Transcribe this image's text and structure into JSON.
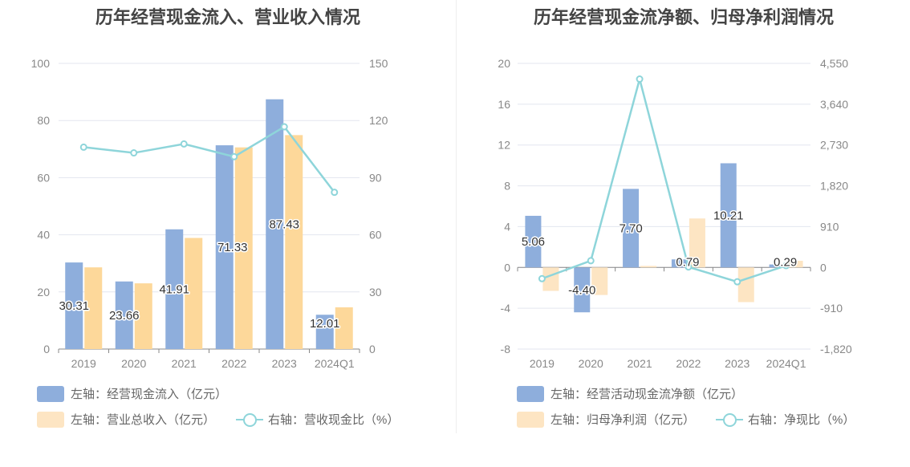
{
  "chart_data": [
    {
      "type": "bar",
      "title": "历年经营现金流入、营业收入情况",
      "categories": [
        "2019",
        "2020",
        "2021",
        "2022",
        "2023",
        "2024Q1"
      ],
      "left_axis": {
        "ticks": [
          "0",
          "20",
          "40",
          "60",
          "80",
          "100"
        ],
        "ylim": [
          0,
          100
        ]
      },
      "right_axis": {
        "ticks": [
          "0",
          "30",
          "60",
          "90",
          "120",
          "150"
        ],
        "ylim": [
          0,
          150
        ]
      },
      "series": [
        {
          "name": "左轴：经营现金流入（亿元）",
          "type": "bar",
          "axis": "left",
          "color": "#8eaedc",
          "values": [
            30.31,
            23.66,
            41.91,
            71.33,
            87.43,
            12.01
          ],
          "labels": [
            "30.31",
            "23.66",
            "41.91",
            "71.33",
            "87.43",
            "12.01"
          ]
        },
        {
          "name": "左轴：营业总收入（亿元）",
          "type": "bar",
          "axis": "left",
          "color": "#fdd89a",
          "values": [
            28.6,
            23.0,
            38.9,
            70.6,
            74.9,
            14.6
          ]
        },
        {
          "name": "右轴：营收现金比（%）",
          "type": "line",
          "axis": "right",
          "color": "#8ed5da",
          "values": [
            106.0,
            103.0,
            107.7,
            101.0,
            116.7,
            82.3
          ]
        }
      ],
      "grid": true
    },
    {
      "type": "bar",
      "title": "历年经营现金流净额、归母净利润情况",
      "categories": [
        "2019",
        "2020",
        "2021",
        "2022",
        "2023",
        "2024Q1"
      ],
      "left_axis": {
        "ticks": [
          "-8",
          "-4",
          "0",
          "4",
          "8",
          "12",
          "16",
          "20"
        ],
        "ylim": [
          -8,
          20
        ]
      },
      "right_axis": {
        "ticks": [
          "-1,820",
          "-910",
          "0",
          "910",
          "1,820",
          "2,730",
          "3,640",
          "4,550"
        ],
        "ylim": [
          -1820,
          4550
        ]
      },
      "series": [
        {
          "name": "左轴：经营活动现金流净额（亿元）",
          "type": "bar",
          "axis": "left",
          "color": "#8eaedc",
          "values": [
            5.06,
            -4.4,
            7.7,
            0.79,
            10.21,
            0.29
          ],
          "labels": [
            "5.06",
            "-4.40",
            "7.70",
            "0.79",
            "10.21",
            "0.29"
          ]
        },
        {
          "name": "左轴：归母净利润（亿元）",
          "type": "bar",
          "axis": "left",
          "color": "#fde5c3",
          "values": [
            -2.3,
            -2.7,
            0.15,
            4.8,
            -3.4,
            0.65
          ]
        },
        {
          "name": "右轴：净现比（%）",
          "type": "line",
          "axis": "right",
          "color": "#8ed5da",
          "values": [
            -250,
            150,
            4200,
            10,
            -320,
            40
          ]
        }
      ],
      "grid": true
    }
  ]
}
